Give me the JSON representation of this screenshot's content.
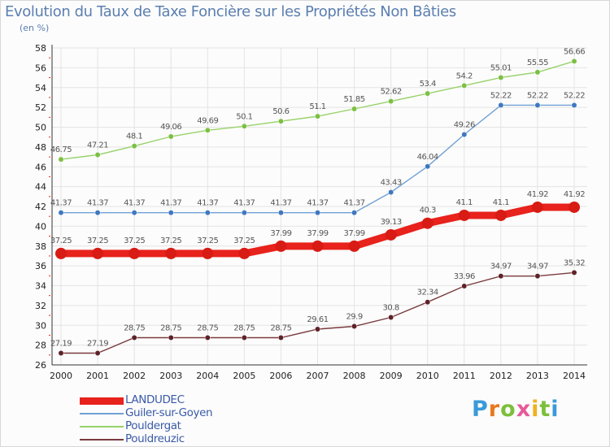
{
  "header": {
    "title": "Evolution du Taux de Taxe Foncière sur les Propriétés Non Bâties",
    "unit": "(en %)"
  },
  "logo": {
    "text": "Proxiti"
  },
  "chart_data": {
    "type": "line",
    "title": "Evolution du Taux de Taxe Foncière sur les Propriétés Non Bâties",
    "ylabel": "(en %)",
    "xlabel": "",
    "ylim": [
      26,
      58
    ],
    "yticks": [
      26,
      28,
      30,
      32,
      34,
      36,
      38,
      40,
      42,
      44,
      46,
      48,
      50,
      52,
      54,
      56,
      58
    ],
    "x": [
      "2000",
      "2001",
      "2002",
      "2003",
      "2004",
      "2005",
      "2006",
      "2007",
      "2008",
      "2009",
      "2010",
      "2011",
      "2012",
      "2013",
      "2014"
    ],
    "grid": true,
    "legend_position": "bottom-left",
    "series": [
      {
        "name": "LANDUDEC",
        "color": "#e8221c",
        "point_color": "#d81b14",
        "emphasis": true,
        "values": [
          37.25,
          37.25,
          37.25,
          37.25,
          37.25,
          37.25,
          37.99,
          37.99,
          37.99,
          39.13,
          40.3,
          41.1,
          41.1,
          41.92,
          41.92
        ],
        "labels": [
          "37.25",
          "37.25",
          "37.25",
          "37.25",
          "37.25",
          "37.25",
          "37.99",
          "37.99",
          "37.99",
          "39.13",
          "40.3",
          "41.1",
          "41.1",
          "41.92",
          "41.92"
        ]
      },
      {
        "name": "Guiler-sur-Goyen",
        "color": "#6fa0d4",
        "point_color": "#3f78bf",
        "emphasis": false,
        "values": [
          41.37,
          41.37,
          41.37,
          41.37,
          41.37,
          41.37,
          41.37,
          41.37,
          41.37,
          43.43,
          46.04,
          49.26,
          52.22,
          52.22,
          52.22
        ],
        "labels": [
          "41.37",
          "41.37",
          "41.37",
          "41.37",
          "41.37",
          "41.37",
          "41.37",
          "41.37",
          "41.37",
          "43.43",
          "46.04",
          "49.26",
          "52.22",
          "52.22",
          "52.22"
        ]
      },
      {
        "name": "Pouldergat",
        "color": "#98d26a",
        "point_color": "#7cc043",
        "emphasis": false,
        "values": [
          46.75,
          47.21,
          48.1,
          49.06,
          49.69,
          50.1,
          50.6,
          51.1,
          51.85,
          52.62,
          53.4,
          54.2,
          55.01,
          55.55,
          56.66
        ],
        "labels": [
          "46.75",
          "47.21",
          "48.1",
          "49.06",
          "49.69",
          "50.1",
          "50.6",
          "51.1",
          "51.85",
          "52.62",
          "53.4",
          "54.2",
          "55.01",
          "55.55",
          "56.66"
        ]
      },
      {
        "name": "Pouldreuzic",
        "color": "#7a3b3e",
        "point_color": "#5e2228",
        "emphasis": false,
        "values": [
          27.19,
          27.19,
          28.75,
          28.75,
          28.75,
          28.75,
          28.75,
          29.61,
          29.9,
          30.8,
          32.34,
          33.96,
          34.97,
          34.97,
          35.32
        ],
        "labels": [
          "27.19",
          "27.19",
          "28.75",
          "28.75",
          "28.75",
          "28.75",
          "28.75",
          "29.61",
          "29.9",
          "30.8",
          "32.34",
          "33.96",
          "34.97",
          "34.97",
          "35.32"
        ]
      }
    ]
  }
}
